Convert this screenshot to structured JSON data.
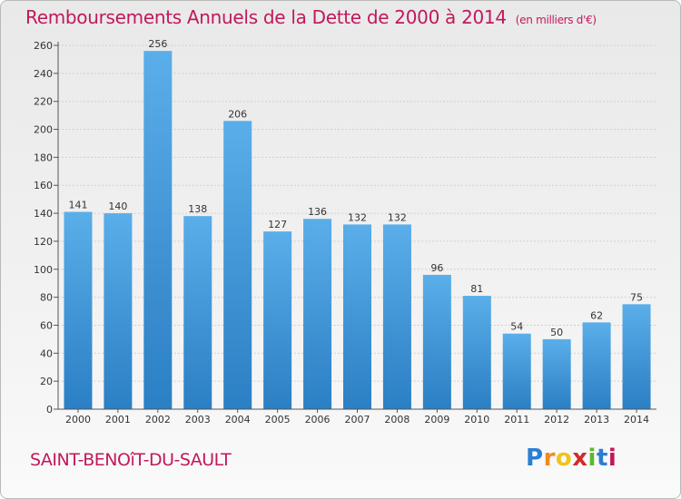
{
  "chart_data": {
    "type": "bar",
    "title": "Remboursements Annuels de la Dette de 2000 à 2014",
    "subtitle": "(en milliers d'€)",
    "categories": [
      "2000",
      "2001",
      "2002",
      "2003",
      "2004",
      "2005",
      "2006",
      "2007",
      "2008",
      "2009",
      "2010",
      "2011",
      "2012",
      "2013",
      "2014"
    ],
    "values": [
      141,
      140,
      256,
      138,
      206,
      127,
      136,
      132,
      132,
      96,
      81,
      54,
      50,
      62,
      75
    ],
    "ylim": [
      0,
      260
    ],
    "yticks": [
      0,
      20,
      40,
      60,
      80,
      100,
      120,
      140,
      160,
      180,
      200,
      220,
      240,
      260
    ],
    "xlabel": "",
    "ylabel": "",
    "bar_color": "#4a9fe0"
  },
  "footer": {
    "commune": "SAINT-BENOîT-DU-SAULT",
    "logo": {
      "letters": [
        "P",
        "r",
        "o",
        "x",
        "i",
        "t",
        "i"
      ],
      "colors": [
        "#2a7fd4",
        "#f08a1c",
        "#f0c419",
        "#d42a2a",
        "#5cb82a",
        "#2a7fd4",
        "#c2185b"
      ]
    }
  }
}
